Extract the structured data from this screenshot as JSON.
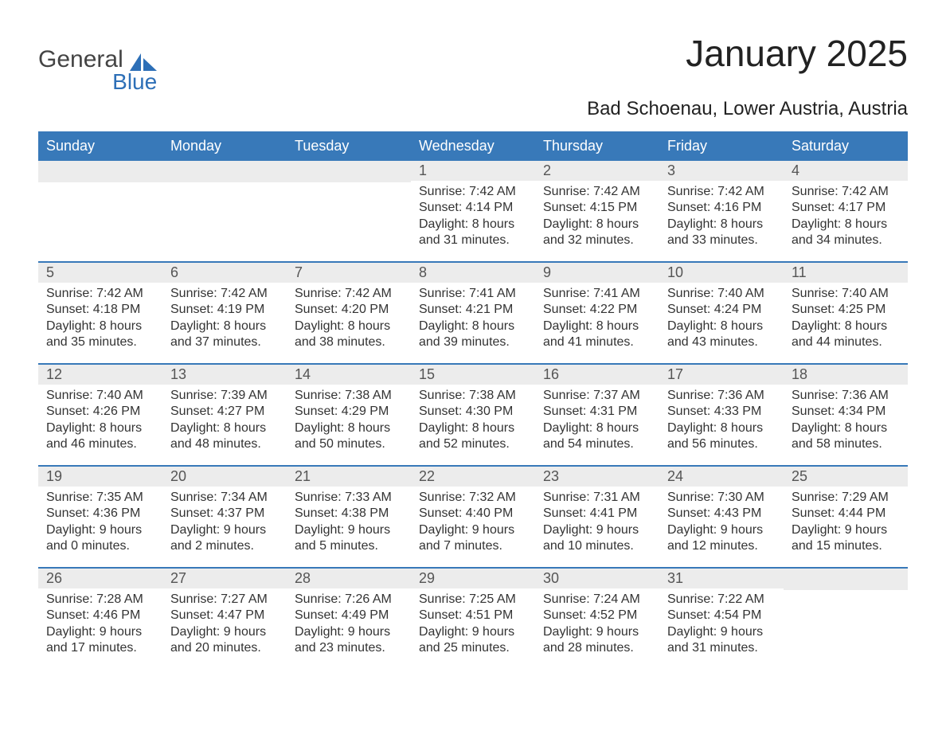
{
  "brand": {
    "general": "General",
    "blue": "Blue"
  },
  "brand_colors": {
    "general": "#444444",
    "blue": "#2d6fb7",
    "sail": "#2d6fb7"
  },
  "title": "January 2025",
  "location": "Bad Schoenau, Lower Austria, Austria",
  "colors": {
    "header_bg": "#3879b9",
    "header_text": "#ffffff",
    "week_divider": "#3879b9",
    "daynum_bg": "#ececec",
    "daynum_text": "#555555",
    "body_text": "#333333",
    "page_bg": "#ffffff"
  },
  "typography": {
    "title_fontsize": 46,
    "location_fontsize": 24,
    "header_fontsize": 18,
    "daynum_fontsize": 18,
    "body_fontsize": 16,
    "font_family": "Arial"
  },
  "day_labels": [
    "Sunday",
    "Monday",
    "Tuesday",
    "Wednesday",
    "Thursday",
    "Friday",
    "Saturday"
  ],
  "weeks": [
    [
      {
        "day": null
      },
      {
        "day": null
      },
      {
        "day": null
      },
      {
        "day": 1,
        "sunrise": "Sunrise: 7:42 AM",
        "sunset": "Sunset: 4:14 PM",
        "daylight1": "Daylight: 8 hours",
        "daylight2": "and 31 minutes."
      },
      {
        "day": 2,
        "sunrise": "Sunrise: 7:42 AM",
        "sunset": "Sunset: 4:15 PM",
        "daylight1": "Daylight: 8 hours",
        "daylight2": "and 32 minutes."
      },
      {
        "day": 3,
        "sunrise": "Sunrise: 7:42 AM",
        "sunset": "Sunset: 4:16 PM",
        "daylight1": "Daylight: 8 hours",
        "daylight2": "and 33 minutes."
      },
      {
        "day": 4,
        "sunrise": "Sunrise: 7:42 AM",
        "sunset": "Sunset: 4:17 PM",
        "daylight1": "Daylight: 8 hours",
        "daylight2": "and 34 minutes."
      }
    ],
    [
      {
        "day": 5,
        "sunrise": "Sunrise: 7:42 AM",
        "sunset": "Sunset: 4:18 PM",
        "daylight1": "Daylight: 8 hours",
        "daylight2": "and 35 minutes."
      },
      {
        "day": 6,
        "sunrise": "Sunrise: 7:42 AM",
        "sunset": "Sunset: 4:19 PM",
        "daylight1": "Daylight: 8 hours",
        "daylight2": "and 37 minutes."
      },
      {
        "day": 7,
        "sunrise": "Sunrise: 7:42 AM",
        "sunset": "Sunset: 4:20 PM",
        "daylight1": "Daylight: 8 hours",
        "daylight2": "and 38 minutes."
      },
      {
        "day": 8,
        "sunrise": "Sunrise: 7:41 AM",
        "sunset": "Sunset: 4:21 PM",
        "daylight1": "Daylight: 8 hours",
        "daylight2": "and 39 minutes."
      },
      {
        "day": 9,
        "sunrise": "Sunrise: 7:41 AM",
        "sunset": "Sunset: 4:22 PM",
        "daylight1": "Daylight: 8 hours",
        "daylight2": "and 41 minutes."
      },
      {
        "day": 10,
        "sunrise": "Sunrise: 7:40 AM",
        "sunset": "Sunset: 4:24 PM",
        "daylight1": "Daylight: 8 hours",
        "daylight2": "and 43 minutes."
      },
      {
        "day": 11,
        "sunrise": "Sunrise: 7:40 AM",
        "sunset": "Sunset: 4:25 PM",
        "daylight1": "Daylight: 8 hours",
        "daylight2": "and 44 minutes."
      }
    ],
    [
      {
        "day": 12,
        "sunrise": "Sunrise: 7:40 AM",
        "sunset": "Sunset: 4:26 PM",
        "daylight1": "Daylight: 8 hours",
        "daylight2": "and 46 minutes."
      },
      {
        "day": 13,
        "sunrise": "Sunrise: 7:39 AM",
        "sunset": "Sunset: 4:27 PM",
        "daylight1": "Daylight: 8 hours",
        "daylight2": "and 48 minutes."
      },
      {
        "day": 14,
        "sunrise": "Sunrise: 7:38 AM",
        "sunset": "Sunset: 4:29 PM",
        "daylight1": "Daylight: 8 hours",
        "daylight2": "and 50 minutes."
      },
      {
        "day": 15,
        "sunrise": "Sunrise: 7:38 AM",
        "sunset": "Sunset: 4:30 PM",
        "daylight1": "Daylight: 8 hours",
        "daylight2": "and 52 minutes."
      },
      {
        "day": 16,
        "sunrise": "Sunrise: 7:37 AM",
        "sunset": "Sunset: 4:31 PM",
        "daylight1": "Daylight: 8 hours",
        "daylight2": "and 54 minutes."
      },
      {
        "day": 17,
        "sunrise": "Sunrise: 7:36 AM",
        "sunset": "Sunset: 4:33 PM",
        "daylight1": "Daylight: 8 hours",
        "daylight2": "and 56 minutes."
      },
      {
        "day": 18,
        "sunrise": "Sunrise: 7:36 AM",
        "sunset": "Sunset: 4:34 PM",
        "daylight1": "Daylight: 8 hours",
        "daylight2": "and 58 minutes."
      }
    ],
    [
      {
        "day": 19,
        "sunrise": "Sunrise: 7:35 AM",
        "sunset": "Sunset: 4:36 PM",
        "daylight1": "Daylight: 9 hours",
        "daylight2": "and 0 minutes."
      },
      {
        "day": 20,
        "sunrise": "Sunrise: 7:34 AM",
        "sunset": "Sunset: 4:37 PM",
        "daylight1": "Daylight: 9 hours",
        "daylight2": "and 2 minutes."
      },
      {
        "day": 21,
        "sunrise": "Sunrise: 7:33 AM",
        "sunset": "Sunset: 4:38 PM",
        "daylight1": "Daylight: 9 hours",
        "daylight2": "and 5 minutes."
      },
      {
        "day": 22,
        "sunrise": "Sunrise: 7:32 AM",
        "sunset": "Sunset: 4:40 PM",
        "daylight1": "Daylight: 9 hours",
        "daylight2": "and 7 minutes."
      },
      {
        "day": 23,
        "sunrise": "Sunrise: 7:31 AM",
        "sunset": "Sunset: 4:41 PM",
        "daylight1": "Daylight: 9 hours",
        "daylight2": "and 10 minutes."
      },
      {
        "day": 24,
        "sunrise": "Sunrise: 7:30 AM",
        "sunset": "Sunset: 4:43 PM",
        "daylight1": "Daylight: 9 hours",
        "daylight2": "and 12 minutes."
      },
      {
        "day": 25,
        "sunrise": "Sunrise: 7:29 AM",
        "sunset": "Sunset: 4:44 PM",
        "daylight1": "Daylight: 9 hours",
        "daylight2": "and 15 minutes."
      }
    ],
    [
      {
        "day": 26,
        "sunrise": "Sunrise: 7:28 AM",
        "sunset": "Sunset: 4:46 PM",
        "daylight1": "Daylight: 9 hours",
        "daylight2": "and 17 minutes."
      },
      {
        "day": 27,
        "sunrise": "Sunrise: 7:27 AM",
        "sunset": "Sunset: 4:47 PM",
        "daylight1": "Daylight: 9 hours",
        "daylight2": "and 20 minutes."
      },
      {
        "day": 28,
        "sunrise": "Sunrise: 7:26 AM",
        "sunset": "Sunset: 4:49 PM",
        "daylight1": "Daylight: 9 hours",
        "daylight2": "and 23 minutes."
      },
      {
        "day": 29,
        "sunrise": "Sunrise: 7:25 AM",
        "sunset": "Sunset: 4:51 PM",
        "daylight1": "Daylight: 9 hours",
        "daylight2": "and 25 minutes."
      },
      {
        "day": 30,
        "sunrise": "Sunrise: 7:24 AM",
        "sunset": "Sunset: 4:52 PM",
        "daylight1": "Daylight: 9 hours",
        "daylight2": "and 28 minutes."
      },
      {
        "day": 31,
        "sunrise": "Sunrise: 7:22 AM",
        "sunset": "Sunset: 4:54 PM",
        "daylight1": "Daylight: 9 hours",
        "daylight2": "and 31 minutes."
      },
      {
        "day": null
      }
    ]
  ]
}
